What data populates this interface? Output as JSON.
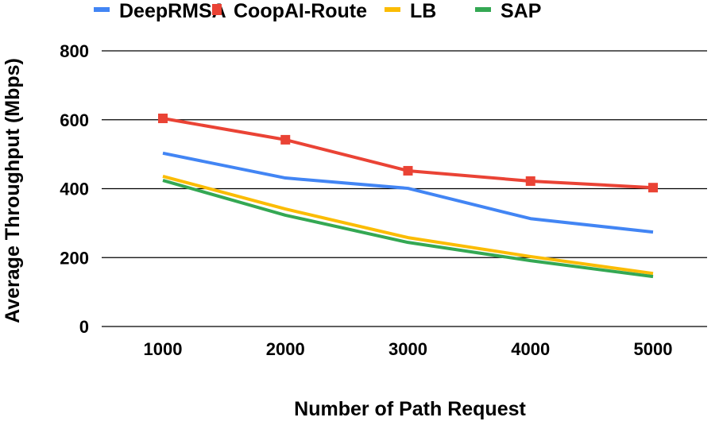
{
  "chart_data": {
    "type": "line",
    "title": "",
    "xlabel": "Number of Path Request",
    "ylabel": "Average Throughput (Mbps)",
    "categories": [
      "1000",
      "2000",
      "3000",
      "4000",
      "5000"
    ],
    "ylim": [
      0,
      800
    ],
    "yticks": [
      "0",
      "200",
      "400",
      "600",
      "800"
    ],
    "grid": true,
    "legend_position": "top",
    "series": [
      {
        "name": "DeepRMSA",
        "color": "#4285f4",
        "marker": "none",
        "values": [
          503,
          431,
          401,
          313,
          274
        ]
      },
      {
        "name": "CoopAI-Route",
        "color": "#ea4335",
        "marker": "square",
        "values": [
          604,
          542,
          452,
          422,
          403
        ]
      },
      {
        "name": "LB",
        "color": "#fbbc04",
        "marker": "none",
        "values": [
          436,
          341,
          258,
          203,
          154
        ]
      },
      {
        "name": "SAP",
        "color": "#34a853",
        "marker": "none",
        "values": [
          424,
          323,
          244,
          191,
          145
        ]
      }
    ]
  }
}
